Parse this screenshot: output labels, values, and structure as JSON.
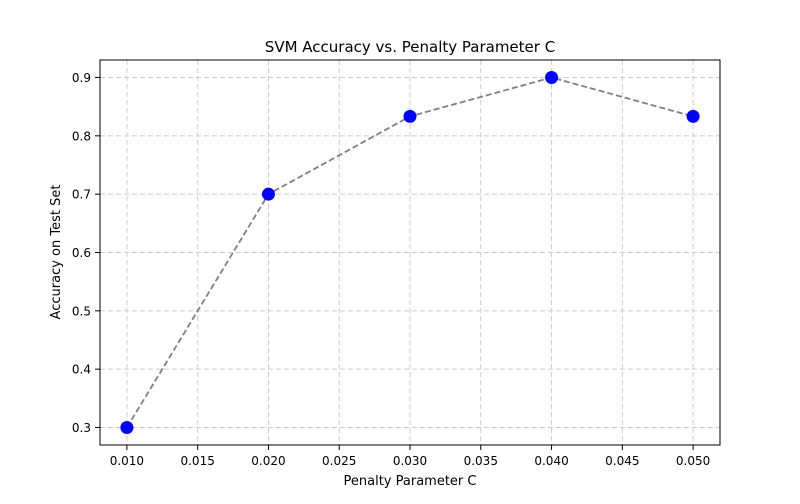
{
  "chart_data": {
    "type": "line",
    "title": "SVM Accuracy vs. Penalty Parameter C",
    "xlabel": "Penalty Parameter C",
    "ylabel": "Accuracy on Test Set",
    "x": [
      0.01,
      0.02,
      0.03,
      0.04,
      0.05
    ],
    "series": [
      {
        "values": [
          0.3,
          0.7,
          0.8333,
          0.9,
          0.8333
        ]
      }
    ],
    "xlim": [
      0.0081,
      0.0519
    ],
    "ylim": [
      0.27,
      0.93
    ],
    "x_ticks": [
      0.01,
      0.015,
      0.02,
      0.025,
      0.03,
      0.035,
      0.04,
      0.045,
      0.05
    ],
    "x_tick_labels": [
      "0.010",
      "0.015",
      "0.020",
      "0.025",
      "0.030",
      "0.035",
      "0.040",
      "0.045",
      "0.050"
    ],
    "y_ticks": [
      0.3,
      0.4,
      0.5,
      0.6,
      0.7,
      0.8,
      0.9
    ],
    "y_tick_labels": [
      "0.3",
      "0.4",
      "0.5",
      "0.6",
      "0.7",
      "0.8",
      "0.9"
    ],
    "grid": true,
    "line_style": "dashed",
    "colors": {
      "marker": "#0000ff",
      "line": "#808080",
      "grid": "#cccccc",
      "axes": "#000000"
    }
  }
}
